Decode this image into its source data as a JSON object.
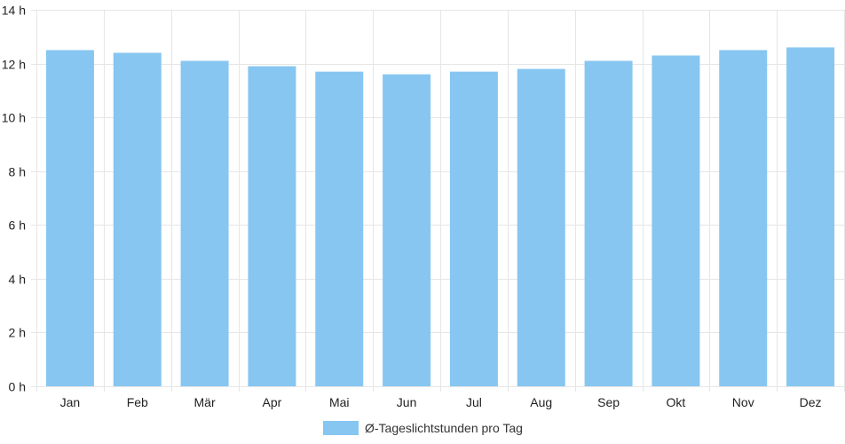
{
  "chart_data": {
    "type": "bar",
    "categories": [
      "Jan",
      "Feb",
      "Mär",
      "Apr",
      "Mai",
      "Jun",
      "Jul",
      "Aug",
      "Sep",
      "Okt",
      "Nov",
      "Dez"
    ],
    "series": [
      {
        "name": "Ø-Tageslichtstunden pro Tag",
        "values": [
          12.5,
          12.4,
          12.1,
          11.9,
          11.7,
          11.6,
          11.7,
          11.8,
          12.1,
          12.3,
          12.5,
          12.6
        ]
      }
    ],
    "y_ticks": [
      "0 h",
      "2 h",
      "4 h",
      "6 h",
      "8 h",
      "10 h",
      "12 h",
      "14 h"
    ],
    "ylim": [
      0,
      14
    ],
    "grid": true,
    "legend_position": "bottom",
    "colors": {
      "bar": "#87c6f1",
      "grid": "#e6e6e6",
      "axis_text": "#222222"
    }
  }
}
